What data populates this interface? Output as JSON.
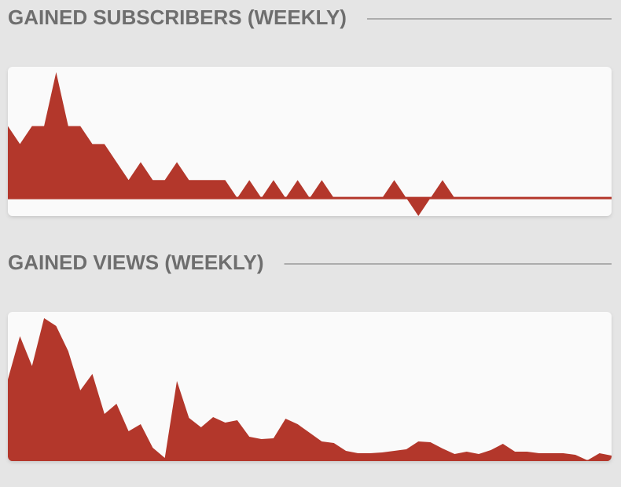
{
  "chart_data": [
    {
      "type": "area",
      "title": "GAINED SUBSCRIBERS (WEEKLY)",
      "color": "#b3372b",
      "ylim": [
        -1,
        7.3
      ],
      "values": [
        4,
        3,
        4,
        4,
        7,
        4,
        4,
        3,
        3,
        2,
        1,
        2,
        1,
        1,
        2,
        1,
        1,
        1,
        1,
        0,
        1,
        0,
        1,
        0,
        1,
        0,
        1,
        0,
        0,
        0,
        0,
        0,
        1,
        0,
        -1,
        0,
        1,
        0,
        0,
        0,
        0,
        0,
        0,
        0,
        0,
        0,
        0,
        0,
        0,
        0,
        0
      ]
    },
    {
      "type": "area",
      "title": "GAINED VIEWS (WEEKLY)",
      "color": "#b3372b",
      "ylim": [
        0,
        190
      ],
      "values": [
        104,
        159,
        121,
        182,
        172,
        140,
        90,
        111,
        60,
        73,
        38,
        47,
        17,
        4,
        102,
        55,
        43,
        56,
        49,
        52,
        31,
        28,
        29,
        54,
        47,
        36,
        25,
        23,
        13,
        10,
        10,
        11,
        13,
        15,
        25,
        24,
        16,
        9,
        12,
        9,
        14,
        22,
        12,
        12,
        10,
        10,
        10,
        8,
        1,
        10,
        7
      ]
    }
  ]
}
